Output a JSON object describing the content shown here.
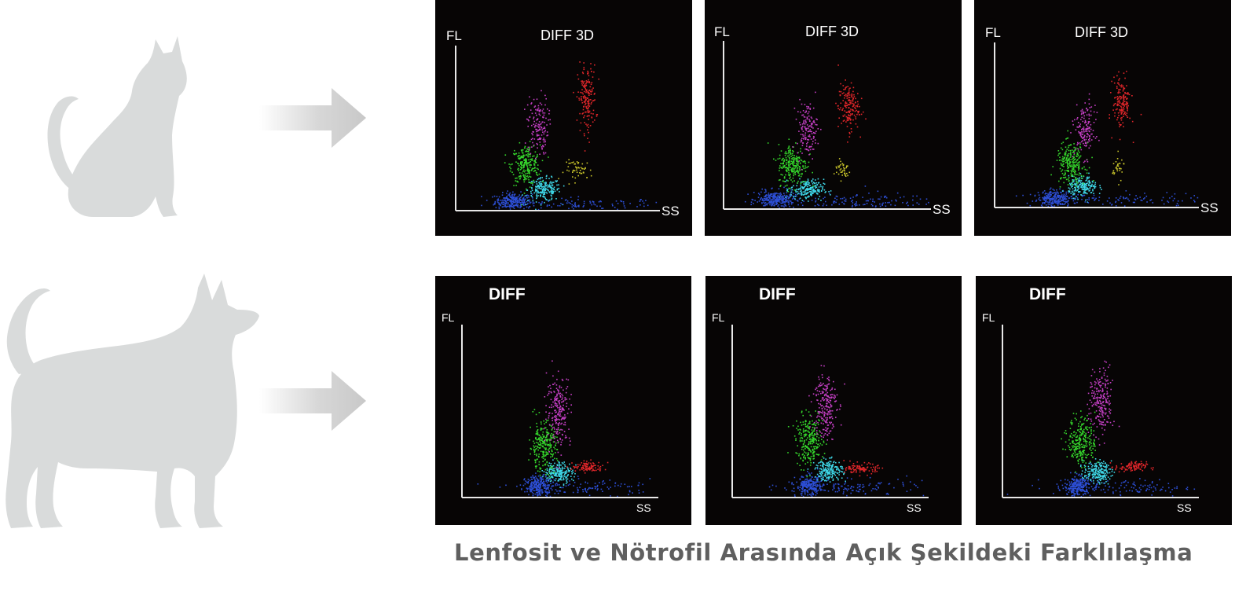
{
  "icons": {
    "cat": "cat-silhouette-icon",
    "dog": "dog-silhouette-icon",
    "arrow": "arrow-right-icon"
  },
  "colors": {
    "silhouette": "#d9dbdb",
    "panel_bg": "#070505",
    "axis": "#e8e8e8",
    "caption": "#5f5f5f",
    "population_colors": {
      "blue": "#2d4fd6",
      "cyan": "#3fd8e8",
      "green": "#35d62c",
      "magenta": "#c43fc4",
      "red": "#e0262a",
      "yellow": "#c8c42a"
    }
  },
  "rows": [
    {
      "animal": "cat",
      "panels": [
        {
          "title": "DIFF 3D",
          "y_label": "FL",
          "x_label": "SS"
        },
        {
          "title": "DIFF 3D",
          "y_label": "FL",
          "x_label": "SS"
        },
        {
          "title": "DIFF 3D",
          "y_label": "FL",
          "x_label": "SS"
        }
      ]
    },
    {
      "animal": "dog",
      "panels": [
        {
          "title": "DIFF",
          "y_label": "FL",
          "x_label": "SS"
        },
        {
          "title": "DIFF",
          "y_label": "FL",
          "x_label": "SS"
        },
        {
          "title": "DIFF",
          "y_label": "FL",
          "x_label": "SS"
        }
      ]
    }
  ],
  "chart_data": [
    {
      "type": "scatter",
      "title": "DIFF 3D",
      "xlabel": "SS",
      "ylabel": "FL",
      "clusters": [
        {
          "color": "blue",
          "x": 0.28,
          "y": 0.06,
          "sx": 0.045,
          "sy": 0.025,
          "n": 260
        },
        {
          "color": "cyan",
          "x": 0.43,
          "y": 0.13,
          "sx": 0.04,
          "sy": 0.035,
          "n": 200
        },
        {
          "color": "green",
          "x": 0.34,
          "y": 0.28,
          "sx": 0.035,
          "sy": 0.06,
          "n": 240
        },
        {
          "color": "magenta",
          "x": 0.4,
          "y": 0.52,
          "sx": 0.025,
          "sy": 0.09,
          "n": 150
        },
        {
          "color": "red",
          "x": 0.64,
          "y": 0.68,
          "sx": 0.022,
          "sy": 0.1,
          "n": 170
        },
        {
          "color": "yellow",
          "x": 0.6,
          "y": 0.25,
          "sx": 0.035,
          "sy": 0.03,
          "n": 50
        },
        {
          "color": "blue",
          "x": 0.65,
          "y": 0.04,
          "sx": 0.22,
          "sy": 0.02,
          "n": 120
        }
      ]
    },
    {
      "type": "scatter",
      "title": "DIFF 3D",
      "xlabel": "SS",
      "ylabel": "FL",
      "clusters": [
        {
          "color": "blue",
          "x": 0.25,
          "y": 0.06,
          "sx": 0.045,
          "sy": 0.025,
          "n": 260
        },
        {
          "color": "cyan",
          "x": 0.4,
          "y": 0.12,
          "sx": 0.04,
          "sy": 0.03,
          "n": 200
        },
        {
          "color": "green",
          "x": 0.33,
          "y": 0.27,
          "sx": 0.035,
          "sy": 0.06,
          "n": 240
        },
        {
          "color": "magenta",
          "x": 0.4,
          "y": 0.48,
          "sx": 0.025,
          "sy": 0.08,
          "n": 150
        },
        {
          "color": "red",
          "x": 0.6,
          "y": 0.61,
          "sx": 0.025,
          "sy": 0.07,
          "n": 170
        },
        {
          "color": "yellow",
          "x": 0.57,
          "y": 0.24,
          "sx": 0.02,
          "sy": 0.03,
          "n": 40
        },
        {
          "color": "blue",
          "x": 0.6,
          "y": 0.05,
          "sx": 0.22,
          "sy": 0.025,
          "n": 140
        }
      ]
    },
    {
      "type": "scatter",
      "title": "DIFF 3D",
      "xlabel": "SS",
      "ylabel": "FL",
      "clusters": [
        {
          "color": "blue",
          "x": 0.29,
          "y": 0.06,
          "sx": 0.04,
          "sy": 0.025,
          "n": 240
        },
        {
          "color": "cyan",
          "x": 0.43,
          "y": 0.13,
          "sx": 0.035,
          "sy": 0.03,
          "n": 200
        },
        {
          "color": "green",
          "x": 0.37,
          "y": 0.27,
          "sx": 0.035,
          "sy": 0.06,
          "n": 240
        },
        {
          "color": "magenta",
          "x": 0.44,
          "y": 0.47,
          "sx": 0.025,
          "sy": 0.08,
          "n": 150
        },
        {
          "color": "red",
          "x": 0.62,
          "y": 0.64,
          "sx": 0.022,
          "sy": 0.08,
          "n": 160
        },
        {
          "color": "yellow",
          "x": 0.6,
          "y": 0.24,
          "sx": 0.015,
          "sy": 0.04,
          "n": 30
        },
        {
          "color": "blue",
          "x": 0.6,
          "y": 0.05,
          "sx": 0.22,
          "sy": 0.02,
          "n": 110
        }
      ]
    },
    {
      "type": "scatter",
      "title": "DIFF",
      "xlabel": "SS",
      "ylabel": "FL",
      "clusters": [
        {
          "color": "blue",
          "x": 0.39,
          "y": 0.07,
          "sx": 0.035,
          "sy": 0.03,
          "n": 240
        },
        {
          "color": "cyan",
          "x": 0.49,
          "y": 0.15,
          "sx": 0.035,
          "sy": 0.03,
          "n": 200
        },
        {
          "color": "green",
          "x": 0.41,
          "y": 0.3,
          "sx": 0.035,
          "sy": 0.07,
          "n": 260
        },
        {
          "color": "magenta",
          "x": 0.49,
          "y": 0.51,
          "sx": 0.03,
          "sy": 0.1,
          "n": 220
        },
        {
          "color": "red",
          "x": 0.64,
          "y": 0.18,
          "sx": 0.04,
          "sy": 0.015,
          "n": 100
        },
        {
          "color": "blue",
          "x": 0.62,
          "y": 0.06,
          "sx": 0.18,
          "sy": 0.025,
          "n": 120
        }
      ]
    },
    {
      "type": "scatter",
      "title": "DIFF",
      "xlabel": "SS",
      "ylabel": "FL",
      "clusters": [
        {
          "color": "blue",
          "x": 0.39,
          "y": 0.07,
          "sx": 0.035,
          "sy": 0.03,
          "n": 240
        },
        {
          "color": "cyan",
          "x": 0.49,
          "y": 0.16,
          "sx": 0.035,
          "sy": 0.03,
          "n": 200
        },
        {
          "color": "green",
          "x": 0.39,
          "y": 0.33,
          "sx": 0.035,
          "sy": 0.07,
          "n": 260
        },
        {
          "color": "magenta",
          "x": 0.47,
          "y": 0.54,
          "sx": 0.03,
          "sy": 0.1,
          "n": 220
        },
        {
          "color": "red",
          "x": 0.66,
          "y": 0.17,
          "sx": 0.04,
          "sy": 0.015,
          "n": 100
        },
        {
          "color": "blue",
          "x": 0.62,
          "y": 0.06,
          "sx": 0.18,
          "sy": 0.025,
          "n": 120
        }
      ]
    },
    {
      "type": "scatter",
      "title": "DIFF",
      "xlabel": "SS",
      "ylabel": "FL",
      "clusters": [
        {
          "color": "blue",
          "x": 0.38,
          "y": 0.07,
          "sx": 0.035,
          "sy": 0.03,
          "n": 240
        },
        {
          "color": "cyan",
          "x": 0.48,
          "y": 0.15,
          "sx": 0.035,
          "sy": 0.03,
          "n": 200
        },
        {
          "color": "green",
          "x": 0.4,
          "y": 0.33,
          "sx": 0.035,
          "sy": 0.07,
          "n": 260
        },
        {
          "color": "magenta",
          "x": 0.5,
          "y": 0.55,
          "sx": 0.03,
          "sy": 0.1,
          "n": 220
        },
        {
          "color": "red",
          "x": 0.65,
          "y": 0.18,
          "sx": 0.04,
          "sy": 0.015,
          "n": 100
        },
        {
          "color": "blue",
          "x": 0.62,
          "y": 0.06,
          "sx": 0.18,
          "sy": 0.025,
          "n": 120
        }
      ]
    }
  ],
  "caption": "Lenfosit ve Nötrofil Arasında Açık Şekildeki Farklılaşma"
}
